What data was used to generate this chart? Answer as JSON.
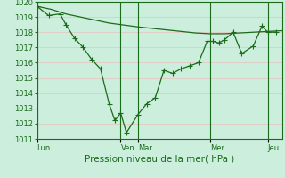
{
  "xlabel": "Pression niveau de la mer( hPa )",
  "ylim": [
    1011,
    1020
  ],
  "bg_color": "#cceedd",
  "line_color": "#1a6b1a",
  "grid_minor_color": "#c8c8c8",
  "grid_major_color": "#e8c0c0",
  "xtick_labels": [
    "Lun",
    "Ven",
    "Mar",
    "Mer",
    "Jeu"
  ],
  "xtick_positions": [
    0,
    2.9,
    3.5,
    6.0,
    8.0
  ],
  "xmax": 8.5,
  "smooth_line_x": [
    0,
    0.5,
    1.0,
    1.5,
    2.0,
    2.5,
    2.9,
    3.5,
    4.0,
    4.5,
    5.0,
    5.5,
    6.0,
    6.5,
    7.0,
    7.5,
    8.0,
    8.5
  ],
  "smooth_line_y": [
    1019.7,
    1019.5,
    1019.2,
    1019.0,
    1018.8,
    1018.6,
    1018.5,
    1018.35,
    1018.25,
    1018.15,
    1018.05,
    1017.95,
    1017.9,
    1017.9,
    1017.95,
    1018.0,
    1018.05,
    1018.1
  ],
  "data_x": [
    0,
    0.4,
    0.8,
    1.0,
    1.3,
    1.6,
    1.9,
    2.2,
    2.5,
    2.7,
    2.9,
    3.1,
    3.5,
    3.8,
    4.1,
    4.4,
    4.7,
    5.0,
    5.3,
    5.6,
    5.9,
    6.1,
    6.3,
    6.5,
    6.8,
    7.1,
    7.5,
    7.8,
    8.0,
    8.3
  ],
  "data_y": [
    1019.7,
    1019.1,
    1019.2,
    1018.5,
    1017.6,
    1017.0,
    1016.2,
    1015.6,
    1013.3,
    1012.2,
    1012.7,
    1011.4,
    1012.6,
    1013.3,
    1013.7,
    1015.5,
    1015.3,
    1015.6,
    1015.8,
    1016.0,
    1017.4,
    1017.4,
    1017.3,
    1017.5,
    1018.0,
    1016.6,
    1017.1,
    1018.4,
    1018.0,
    1018.0
  ],
  "day_sep_x": [
    0,
    2.9,
    3.5,
    6.0,
    8.0
  ],
  "xlabel_fontsize": 7.5,
  "tick_fontsize": 6,
  "marker_size": 2.5
}
